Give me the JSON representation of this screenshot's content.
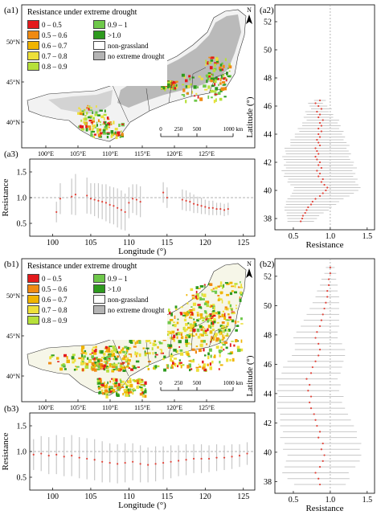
{
  "colors": {
    "c0": "#e31a1c",
    "c1": "#f08a12",
    "c2": "#f0b400",
    "c3": "#ede03a",
    "c4": "#b6e03a",
    "c5": "#6ec84a",
    "c6": "#2e9a1e",
    "nongrass": "#ffffff",
    "nodrought": "#b4b4b4",
    "dots": "#e2443a",
    "bars": "#c8c8c8",
    "ref": "#999999"
  },
  "panel_a": {
    "map": {
      "label": "(a1)",
      "legend_title": "Resistance under extreme drought",
      "legend": [
        {
          "label": "0 – 0.5",
          "color": "#e31a1c"
        },
        {
          "label": "0.9 – 1",
          "color": "#6ec84a"
        },
        {
          "label": "0.5 – 0.6",
          "color": "#f08a12"
        },
        {
          "label": ">1.0",
          "color": "#2e9a1e"
        },
        {
          "label": "0.6 – 0.7",
          "color": "#f0b400"
        },
        {
          "label": "non-grassland",
          "color": "#ffffff"
        },
        {
          "label": "0.7 – 0.8",
          "color": "#ede03a"
        },
        {
          "label": "no extreme drought",
          "color": "#b4b4b4"
        },
        {
          "label": "0.8 – 0.9",
          "color": "#b6e03a"
        }
      ],
      "lon_ticks": [
        "100°E",
        "105°E",
        "110°E",
        "115°E",
        "120°E",
        "125°E"
      ],
      "lat_ticks": [
        "40°N",
        "45°N",
        "50°N"
      ],
      "scale_ticks": [
        "0",
        "250",
        "500",
        "1000 km"
      ],
      "north": "N"
    },
    "lat_profile": {
      "label": "(a2)",
      "ylabel": "Latitude (°)",
      "xlabel": "Resistance",
      "yticks": [
        "38",
        "40",
        "42",
        "44",
        "46",
        "48",
        "50",
        "52"
      ],
      "xticks": [
        "0.5",
        "1.0",
        "1.5"
      ]
    },
    "lon_profile": {
      "label": "(a3)",
      "ylabel": "Resistance",
      "xlabel": "Longitude (°)",
      "yticks": [
        "0.5",
        "1.0",
        "1.5"
      ],
      "xticks": [
        "100",
        "105",
        "110",
        "115",
        "120",
        "125"
      ]
    }
  },
  "panel_b": {
    "map": {
      "label": "(b1)",
      "legend_title": "Resistance under extreme drought",
      "legend": [
        {
          "label": "0 – 0.5",
          "color": "#e31a1c"
        },
        {
          "label": "0.9 – 1",
          "color": "#6ec84a"
        },
        {
          "label": "0.5 – 0.6",
          "color": "#f08a12"
        },
        {
          "label": ">1.0",
          "color": "#2e9a1e"
        },
        {
          "label": "0.6 – 0.7",
          "color": "#f0b400"
        },
        {
          "label": "non-grassland",
          "color": "#ffffff"
        },
        {
          "label": "0.7 – 0.8",
          "color": "#ede03a"
        },
        {
          "label": "no extreme drought",
          "color": "#b4b4b4"
        },
        {
          "label": "0.8 – 0.9",
          "color": "#b6e03a"
        }
      ],
      "lon_ticks": [
        "100°E",
        "105°E",
        "110°E",
        "115°E",
        "120°E",
        "125°E"
      ],
      "lat_ticks": [
        "40°N",
        "45°N",
        "50°N"
      ],
      "scale_ticks": [
        "0",
        "250",
        "500",
        "1000 km"
      ],
      "north": "N"
    },
    "lat_profile": {
      "label": "(b2)",
      "ylabel": "Latitude (°)",
      "xlabel": "Resistance",
      "yticks": [
        "38",
        "40",
        "42",
        "44",
        "46",
        "48",
        "50",
        "52"
      ],
      "xticks": [
        "0.5",
        "1.0",
        "1.5"
      ]
    },
    "lon_profile": {
      "label": "(b3)",
      "ylabel": "Resistance",
      "xlabel": "Longitude (°)",
      "yticks": [
        "0.5",
        "1.0",
        "1.5"
      ],
      "xticks": [
        "100",
        "105",
        "110",
        "115",
        "120",
        "125"
      ]
    }
  },
  "chart_data": [
    {
      "id": "a2",
      "type": "scatter",
      "title": "",
      "xlabel": "Resistance",
      "ylabel": "Latitude (°)",
      "xlim": [
        0.25,
        1.6
      ],
      "ylim": [
        37.2,
        53.2
      ],
      "reference_x": 1.0,
      "y": [
        37.8,
        38.0,
        38.2,
        38.4,
        38.6,
        38.8,
        39.0,
        39.2,
        39.4,
        39.6,
        39.8,
        40.0,
        40.2,
        40.4,
        40.6,
        40.8,
        41.0,
        41.2,
        41.4,
        41.6,
        41.8,
        42.0,
        42.2,
        42.4,
        42.6,
        42.8,
        43.0,
        43.2,
        43.4,
        43.6,
        43.8,
        44.0,
        44.2,
        44.4,
        44.6,
        44.8,
        45.0,
        45.2,
        45.4,
        45.6,
        45.8,
        46.0,
        46.2,
        46.4
      ],
      "x": [
        0.6,
        0.62,
        0.63,
        0.66,
        0.68,
        0.7,
        0.74,
        0.76,
        0.8,
        0.86,
        0.9,
        0.94,
        0.96,
        0.92,
        0.88,
        0.9,
        0.84,
        0.86,
        0.82,
        0.88,
        0.84,
        0.86,
        0.82,
        0.8,
        0.84,
        0.82,
        0.8,
        0.86,
        0.84,
        0.82,
        0.86,
        0.84,
        0.88,
        0.84,
        0.88,
        0.86,
        0.9,
        0.84,
        0.86,
        0.82,
        0.88,
        0.84,
        0.8,
        0.86
      ],
      "err": [
        0.18,
        0.2,
        0.22,
        0.25,
        0.3,
        0.32,
        0.34,
        0.36,
        0.38,
        0.4,
        0.42,
        0.44,
        0.45,
        0.46,
        0.46,
        0.47,
        0.47,
        0.48,
        0.48,
        0.48,
        0.47,
        0.46,
        0.45,
        0.45,
        0.44,
        0.43,
        0.42,
        0.4,
        0.38,
        0.36,
        0.34,
        0.32,
        0.3,
        0.28,
        0.26,
        0.24,
        0.22,
        0.2,
        0.18,
        0.16,
        0.14,
        0.12,
        0.1,
        0.08
      ]
    },
    {
      "id": "a3",
      "type": "scatter",
      "title": "",
      "xlabel": "Longitude (°)",
      "ylabel": "Resistance",
      "xlim": [
        97,
        126.5
      ],
      "ylim": [
        0.25,
        1.75
      ],
      "reference_y": 1.0,
      "x": [
        100.5,
        101.0,
        102.5,
        103.0,
        104.5,
        105.0,
        105.5,
        106.0,
        106.5,
        107.0,
        107.5,
        108.0,
        108.5,
        109.0,
        109.5,
        110.0,
        110.5,
        111.0,
        111.5,
        114.5,
        115.0,
        117.0,
        117.5,
        118.0,
        118.5,
        119.0,
        119.5,
        120.0,
        120.5,
        121.0,
        121.5,
        122.0,
        122.5,
        123.0
      ],
      "y": [
        0.72,
        0.98,
        1.02,
        1.06,
        1.04,
        0.98,
        0.96,
        0.94,
        0.92,
        0.9,
        0.86,
        0.84,
        0.8,
        0.76,
        0.72,
        0.9,
        0.98,
        0.96,
        0.92,
        1.1,
        1.0,
        0.96,
        0.94,
        0.92,
        0.88,
        0.86,
        0.84,
        0.82,
        0.8,
        0.8,
        0.78,
        0.78,
        0.76,
        0.78
      ],
      "err": [
        0.2,
        0.3,
        0.35,
        0.4,
        0.35,
        0.3,
        0.32,
        0.34,
        0.34,
        0.36,
        0.36,
        0.36,
        0.38,
        0.38,
        0.36,
        0.3,
        0.28,
        0.3,
        0.3,
        0.2,
        0.2,
        0.2,
        0.2,
        0.18,
        0.18,
        0.16,
        0.16,
        0.14,
        0.14,
        0.14,
        0.12,
        0.12,
        0.12,
        0.12
      ]
    },
    {
      "id": "b2",
      "type": "scatter",
      "title": "",
      "xlabel": "Resistance",
      "ylabel": "Latitude (°)",
      "xlim": [
        0.25,
        1.6
      ],
      "ylim": [
        37.2,
        53.2
      ],
      "reference_x": 1.0,
      "y": [
        37.8,
        38.2,
        38.6,
        39.0,
        39.4,
        39.8,
        40.2,
        40.6,
        41.0,
        41.4,
        41.8,
        42.2,
        42.6,
        43.0,
        43.4,
        43.8,
        44.2,
        44.6,
        45.0,
        45.4,
        45.8,
        46.2,
        46.6,
        47.0,
        47.4,
        47.8,
        48.2,
        48.6,
        49.0,
        49.4,
        49.8,
        50.2,
        50.6,
        51.0,
        51.4,
        51.8,
        52.2,
        52.6
      ],
      "x": [
        0.86,
        0.84,
        0.8,
        0.86,
        0.9,
        0.92,
        0.88,
        0.9,
        0.84,
        0.86,
        0.82,
        0.8,
        0.78,
        0.74,
        0.72,
        0.74,
        0.7,
        0.72,
        0.68,
        0.74,
        0.76,
        0.8,
        0.84,
        0.86,
        0.84,
        0.8,
        0.82,
        0.86,
        0.88,
        0.9,
        0.92,
        0.94,
        0.96,
        0.96,
        0.98,
        0.98,
        1.0,
        1.0
      ],
      "err": [
        0.35,
        0.42,
        0.45,
        0.48,
        0.5,
        0.5,
        0.52,
        0.52,
        0.52,
        0.5,
        0.5,
        0.48,
        0.46,
        0.46,
        0.44,
        0.44,
        0.42,
        0.42,
        0.42,
        0.4,
        0.4,
        0.38,
        0.36,
        0.34,
        0.32,
        0.3,
        0.28,
        0.26,
        0.24,
        0.22,
        0.2,
        0.18,
        0.16,
        0.14,
        0.12,
        0.1,
        0.08,
        0.06
      ]
    },
    {
      "id": "b3",
      "type": "scatter",
      "title": "",
      "xlabel": "Longitude (°)",
      "ylabel": "Resistance",
      "xlim": [
        97,
        126.5
      ],
      "ylim": [
        0.25,
        1.75
      ],
      "reference_y": 1.0,
      "x": [
        97.5,
        98.5,
        99.5,
        100.5,
        101.5,
        102.5,
        103.5,
        104.5,
        105.5,
        106.5,
        107.5,
        108.5,
        109.5,
        110.5,
        111.5,
        112.5,
        113.5,
        114.5,
        115.5,
        116.5,
        117.5,
        118.5,
        119.5,
        120.5,
        121.5,
        122.5,
        123.5,
        124.5,
        125.5
      ],
      "y": [
        0.94,
        0.96,
        0.92,
        0.94,
        0.9,
        0.92,
        0.88,
        0.86,
        0.84,
        0.8,
        0.78,
        0.76,
        0.78,
        0.8,
        0.76,
        0.74,
        0.76,
        0.78,
        0.8,
        0.82,
        0.84,
        0.86,
        0.86,
        0.86,
        0.88,
        0.88,
        0.9,
        0.92,
        0.96
      ],
      "err": [
        0.3,
        0.34,
        0.36,
        0.38,
        0.38,
        0.4,
        0.4,
        0.4,
        0.4,
        0.4,
        0.38,
        0.38,
        0.38,
        0.36,
        0.36,
        0.34,
        0.34,
        0.32,
        0.32,
        0.3,
        0.3,
        0.28,
        0.28,
        0.26,
        0.26,
        0.24,
        0.24,
        0.22,
        0.22
      ]
    }
  ]
}
